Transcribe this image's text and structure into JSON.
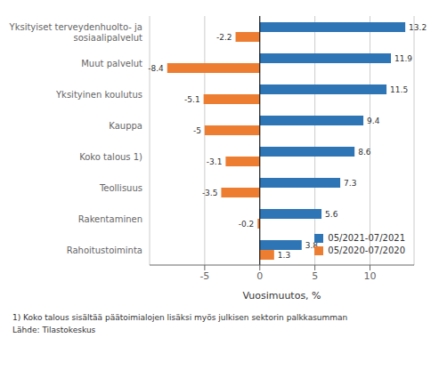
{
  "chart_data": {
    "type": "bar",
    "orientation": "horizontal",
    "categories": [
      "Yksityiset terveydenhuolto- ja\nsosiaalipalvelut",
      "Muut palvelut",
      "Yksityinen koulutus",
      "Kauppa",
      "Koko talous 1)",
      "Teollisuus",
      "Rakentaminen",
      "Rahoitustoiminta"
    ],
    "series": [
      {
        "name": "05/2021-07/2021",
        "color": "#2E75B6",
        "values": [
          13.2,
          11.9,
          11.5,
          9.4,
          8.6,
          7.3,
          5.6,
          3.8
        ]
      },
      {
        "name": "05/2020-07/2020",
        "color": "#ED7D31",
        "values": [
          -2.2,
          -8.4,
          -5.1,
          -5.0,
          -3.1,
          -3.5,
          -0.2,
          1.3
        ]
      }
    ],
    "xlabel": "Vuosimuutos, %",
    "xlim": [
      -10,
      14
    ],
    "xticks": [
      -5,
      0,
      5,
      10
    ],
    "grid": true,
    "legend": "lower right",
    "data_labels": true,
    "annotations": [
      "1) Koko talous sisältää päätoimialojen lisäksi myös julkisen sektorin palkkasumman",
      "Lähde: Tilastokeskus"
    ]
  }
}
